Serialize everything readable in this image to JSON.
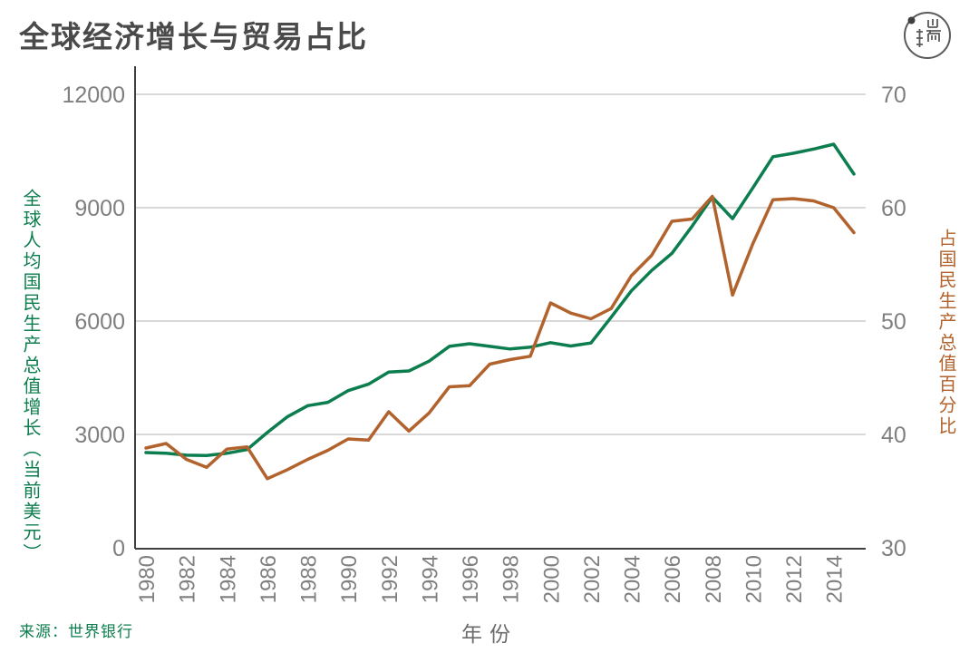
{
  "header": {
    "title": "全球经济增长与贸易占比",
    "logo": "initium-media-logo"
  },
  "chart_data": {
    "type": "line",
    "title": "全球经济增长与贸易占比",
    "xlabel": "年份",
    "source": "来源：世界银行",
    "grid": "horizontal",
    "legend_position": "none",
    "x": [
      1980,
      1981,
      1982,
      1983,
      1984,
      1985,
      1986,
      1987,
      1988,
      1989,
      1990,
      1991,
      1992,
      1993,
      1994,
      1995,
      1996,
      1997,
      1998,
      1999,
      2000,
      2001,
      2002,
      2003,
      2004,
      2005,
      2006,
      2007,
      2008,
      2009,
      2010,
      2011,
      2012,
      2013,
      2014,
      2015
    ],
    "x_ticks": [
      1980,
      1982,
      1984,
      1986,
      1988,
      1990,
      1992,
      1994,
      1996,
      1998,
      2000,
      2002,
      2004,
      2006,
      2008,
      2010,
      2012,
      2014
    ],
    "left_axis": {
      "label": "全球人均国民生产总值增长（当前美元）",
      "color": "#0c7d4e",
      "ticks": [
        12000,
        9000,
        6000,
        3000,
        0
      ],
      "range": [
        0,
        12000
      ]
    },
    "right_axis": {
      "label": "占国民生产总值百分比",
      "color": "#b2622d",
      "ticks": [
        70,
        60,
        50,
        40,
        30
      ],
      "range": [
        30,
        70
      ]
    },
    "series": [
      {
        "name": "全球人均国民生产总值增长（当前美元）",
        "axis": "left",
        "color": "#0c7d4e",
        "values": [
          2520,
          2500,
          2450,
          2440,
          2500,
          2600,
          3050,
          3470,
          3760,
          3850,
          4160,
          4330,
          4650,
          4680,
          4940,
          5330,
          5400,
          5330,
          5260,
          5310,
          5430,
          5340,
          5420,
          6100,
          6800,
          7340,
          7790,
          8510,
          9280,
          8710,
          9520,
          10350,
          10440,
          10550,
          10680,
          9890
        ]
      },
      {
        "name": "占国民生产总值百分比",
        "axis": "right",
        "color": "#b2622d",
        "values": [
          38.8,
          39.2,
          37.8,
          37.1,
          38.7,
          38.9,
          36.1,
          36.9,
          37.8,
          38.6,
          39.6,
          39.5,
          42.0,
          40.3,
          41.9,
          44.2,
          44.3,
          46.2,
          46.6,
          46.9,
          51.6,
          50.7,
          50.2,
          51.1,
          54.0,
          55.8,
          58.8,
          59.0,
          61.0,
          52.3,
          56.8,
          60.7,
          60.8,
          60.6,
          60.0,
          57.8
        ]
      }
    ],
    "style": {
      "grid_color": "#d9d9d9",
      "axis_line_color": "#3f3f3f",
      "tick_label_color": "#7f7f7f",
      "line_width": 3.5
    }
  }
}
